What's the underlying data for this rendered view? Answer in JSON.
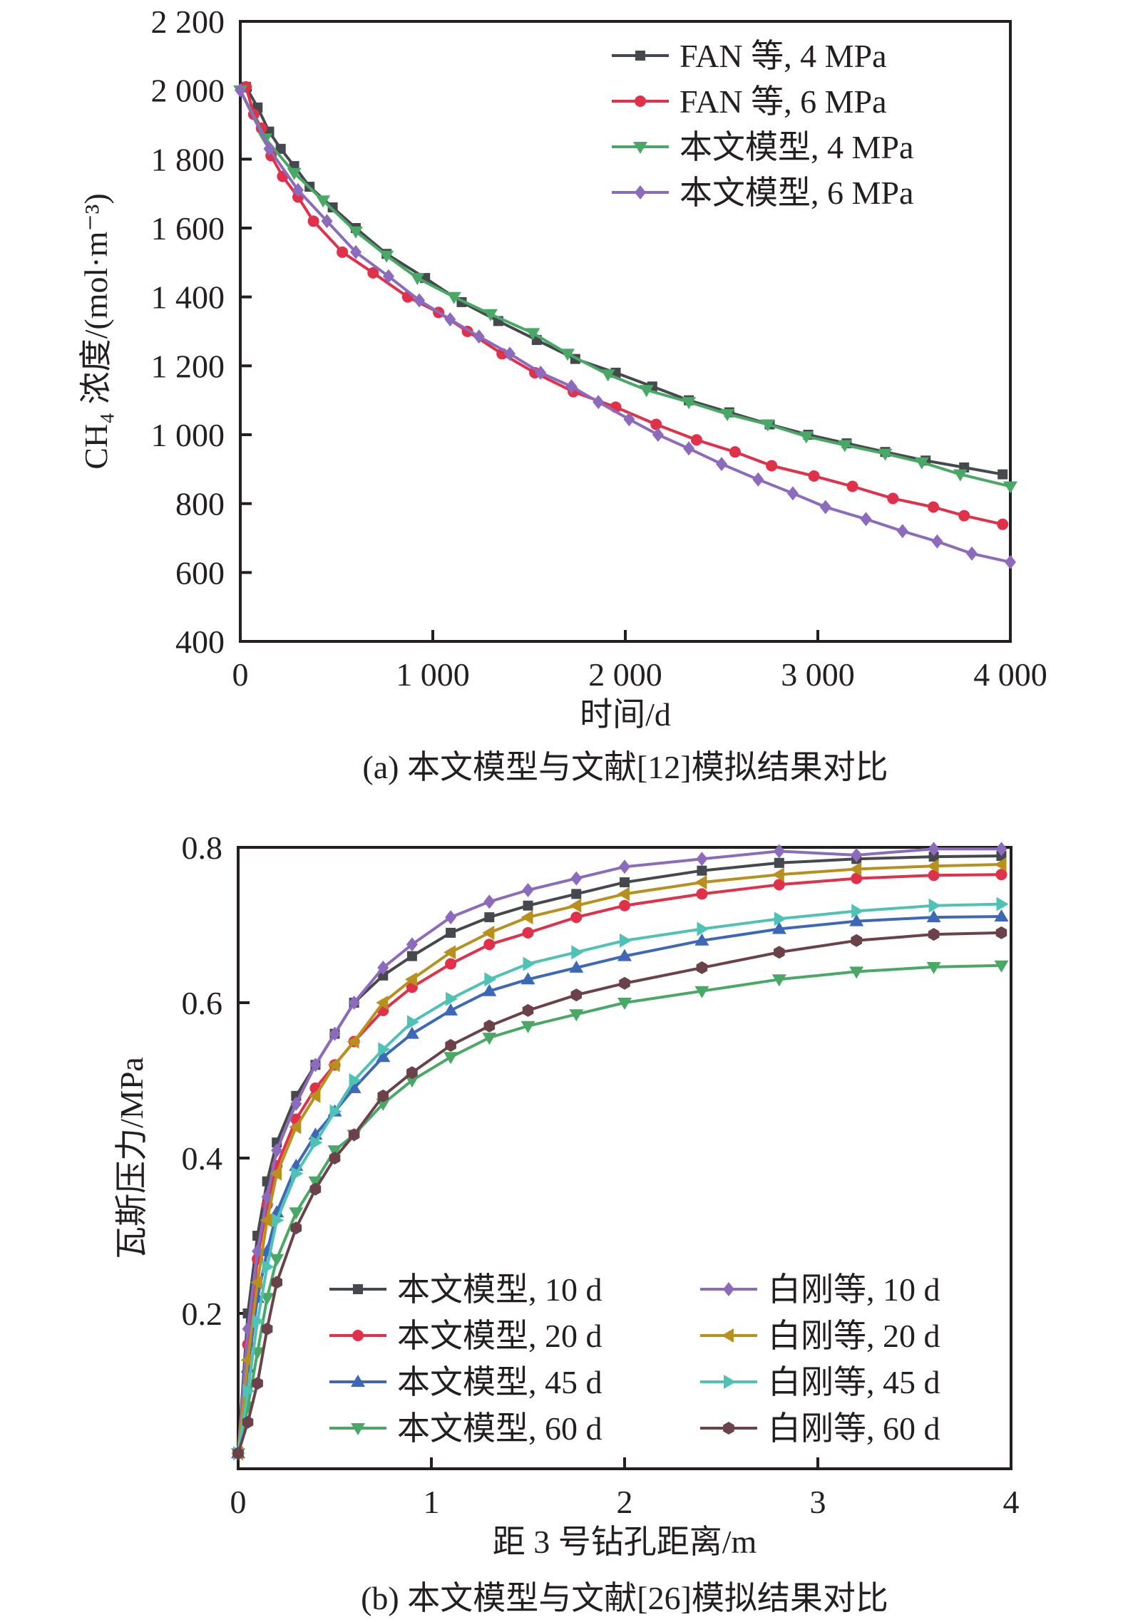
{
  "chart_data": [
    {
      "id": "a",
      "type": "line",
      "title": "",
      "caption": "(a) 本文模型与文献[12]模拟结果对比",
      "xlabel": "时间/d",
      "ylabel": "CH₄ 浓度/(mol·m⁻³)",
      "xlim": [
        0,
        4000
      ],
      "ylim": [
        400,
        2200
      ],
      "xticks": [
        0,
        1000,
        2000,
        3000,
        4000
      ],
      "xtick_labels": [
        "0",
        "1 000",
        "2 000",
        "3 000",
        "4 000"
      ],
      "yticks": [
        400,
        600,
        800,
        1000,
        1200,
        1400,
        1600,
        1800,
        2000,
        2200
      ],
      "ytick_labels": [
        "400",
        "600",
        "800",
        "1 000",
        "1 200",
        "1 400",
        "1 600",
        "1 800",
        "2 000",
        "2 200"
      ],
      "grid": false,
      "legend_position": "top-right",
      "series": [
        {
          "name": "FAN 等, 4 MPa",
          "color": "#45494d",
          "marker": "square",
          "x": [
            30,
            90,
            150,
            210,
            280,
            360,
            480,
            600,
            760,
            960,
            1150,
            1340,
            1540,
            1740,
            1950,
            2140,
            2330,
            2540,
            2750,
            2950,
            3150,
            3350,
            3560,
            3760,
            3960
          ],
          "y": [
            2010,
            1950,
            1880,
            1830,
            1780,
            1720,
            1660,
            1600,
            1525,
            1455,
            1385,
            1330,
            1275,
            1220,
            1180,
            1140,
            1100,
            1065,
            1030,
            1000,
            975,
            950,
            925,
            905,
            885
          ]
        },
        {
          "name": "FAN 等, 6 MPa",
          "color": "#e0304a",
          "marker": "circle",
          "x": [
            30,
            70,
            110,
            160,
            220,
            300,
            380,
            530,
            690,
            870,
            1030,
            1180,
            1360,
            1530,
            1730,
            1950,
            2160,
            2370,
            2570,
            2760,
            2980,
            3180,
            3390,
            3600,
            3760,
            3960
          ],
          "y": [
            2010,
            1930,
            1890,
            1810,
            1750,
            1690,
            1620,
            1530,
            1470,
            1400,
            1355,
            1300,
            1235,
            1180,
            1125,
            1080,
            1030,
            985,
            950,
            910,
            880,
            850,
            815,
            790,
            765,
            740
          ]
        },
        {
          "name": "本文模型, 4 MPa",
          "color": "#4aa866",
          "marker": "triangle-down",
          "x": [
            0,
            130,
            280,
            430,
            600,
            760,
            920,
            1110,
            1300,
            1520,
            1700,
            1910,
            2110,
            2330,
            2530,
            2740,
            2940,
            3140,
            3350,
            3540,
            3740,
            4000
          ],
          "y": [
            2000,
            1860,
            1760,
            1680,
            1590,
            1520,
            1455,
            1400,
            1350,
            1295,
            1235,
            1175,
            1130,
            1095,
            1060,
            1030,
            995,
            970,
            945,
            920,
            885,
            850
          ]
        },
        {
          "name": "本文模型, 6 MPa",
          "color": "#8c6bbd",
          "marker": "diamond",
          "x": [
            0,
            150,
            300,
            450,
            600,
            770,
            930,
            1090,
            1240,
            1400,
            1560,
            1720,
            1860,
            2020,
            2170,
            2330,
            2500,
            2690,
            2870,
            3040,
            3250,
            3440,
            3620,
            3800,
            4000
          ],
          "y": [
            2000,
            1830,
            1710,
            1620,
            1530,
            1460,
            1390,
            1335,
            1285,
            1235,
            1180,
            1140,
            1095,
            1045,
            1000,
            960,
            915,
            870,
            830,
            790,
            755,
            720,
            690,
            655,
            630
          ]
        }
      ]
    },
    {
      "id": "b",
      "type": "line",
      "title": "",
      "caption": "(b) 本文模型与文献[26]模拟结果对比",
      "xlabel": "距 3 号钻孔距离/m",
      "ylabel": "瓦斯压力/MPa",
      "xlim": [
        0,
        4
      ],
      "ylim": [
        0,
        0.8
      ],
      "xticks": [
        0,
        1,
        2,
        3,
        4
      ],
      "xtick_labels": [
        "0",
        "1",
        "2",
        "3",
        "4"
      ],
      "yticks": [
        0.2,
        0.4,
        0.6,
        0.8
      ],
      "ytick_labels": [
        "0.2",
        "0.4",
        "0.6",
        "0.8"
      ],
      "grid": false,
      "legend_position": "bottom-right",
      "series": [
        {
          "name": "本文模型, 10 d",
          "color": "#45494d",
          "marker": "square",
          "x": [
            0,
            0.05,
            0.1,
            0.15,
            0.2,
            0.3,
            0.4,
            0.5,
            0.6,
            0.75,
            0.9,
            1.1,
            1.3,
            1.5,
            1.75,
            2.0,
            2.4,
            2.8,
            3.2,
            3.6,
            3.95
          ],
          "y": [
            0.02,
            0.2,
            0.3,
            0.37,
            0.42,
            0.48,
            0.52,
            0.56,
            0.6,
            0.635,
            0.66,
            0.69,
            0.71,
            0.725,
            0.74,
            0.755,
            0.77,
            0.78,
            0.785,
            0.788,
            0.789
          ]
        },
        {
          "name": "本文模型, 20 d",
          "color": "#e0304a",
          "marker": "circle",
          "x": [
            0,
            0.05,
            0.1,
            0.15,
            0.2,
            0.3,
            0.4,
            0.5,
            0.6,
            0.75,
            0.9,
            1.1,
            1.3,
            1.5,
            1.75,
            2.0,
            2.4,
            2.8,
            3.2,
            3.6,
            3.95
          ],
          "y": [
            0.02,
            0.16,
            0.27,
            0.34,
            0.39,
            0.45,
            0.49,
            0.52,
            0.55,
            0.59,
            0.62,
            0.65,
            0.675,
            0.69,
            0.71,
            0.725,
            0.74,
            0.752,
            0.76,
            0.764,
            0.765
          ]
        },
        {
          "name": "本文模型, 45 d",
          "color": "#3d68b8",
          "marker": "triangle-up",
          "x": [
            0,
            0.05,
            0.1,
            0.15,
            0.2,
            0.3,
            0.4,
            0.5,
            0.6,
            0.75,
            0.9,
            1.1,
            1.3,
            1.5,
            1.75,
            2.0,
            2.4,
            2.8,
            3.2,
            3.6,
            3.95
          ],
          "y": [
            0.02,
            0.13,
            0.22,
            0.28,
            0.33,
            0.39,
            0.43,
            0.46,
            0.49,
            0.53,
            0.56,
            0.59,
            0.615,
            0.63,
            0.645,
            0.66,
            0.68,
            0.695,
            0.705,
            0.71,
            0.711
          ]
        },
        {
          "name": "本文模型, 60 d",
          "color": "#4aa866",
          "marker": "triangle-down",
          "x": [
            0,
            0.05,
            0.1,
            0.15,
            0.2,
            0.3,
            0.4,
            0.5,
            0.6,
            0.75,
            0.9,
            1.1,
            1.3,
            1.5,
            1.75,
            2.0,
            2.4,
            2.8,
            3.2,
            3.6,
            3.95
          ],
          "y": [
            0.02,
            0.08,
            0.15,
            0.22,
            0.27,
            0.33,
            0.37,
            0.41,
            0.43,
            0.47,
            0.5,
            0.53,
            0.555,
            0.57,
            0.585,
            0.6,
            0.615,
            0.63,
            0.64,
            0.646,
            0.648
          ]
        },
        {
          "name": "白刚等, 10 d",
          "color": "#8c6bbd",
          "marker": "diamond",
          "x": [
            0,
            0.05,
            0.1,
            0.15,
            0.2,
            0.3,
            0.4,
            0.5,
            0.6,
            0.75,
            0.9,
            1.1,
            1.3,
            1.5,
            1.75,
            2.0,
            2.4,
            2.8,
            3.2,
            3.6,
            3.95
          ],
          "y": [
            0.02,
            0.18,
            0.28,
            0.35,
            0.41,
            0.47,
            0.52,
            0.56,
            0.6,
            0.645,
            0.675,
            0.71,
            0.73,
            0.745,
            0.76,
            0.775,
            0.785,
            0.795,
            0.79,
            0.798,
            0.798
          ]
        },
        {
          "name": "白刚等, 20 d",
          "color": "#b8901e",
          "marker": "triangle-left",
          "x": [
            0,
            0.05,
            0.1,
            0.15,
            0.2,
            0.3,
            0.4,
            0.5,
            0.6,
            0.75,
            0.9,
            1.1,
            1.3,
            1.5,
            1.75,
            2.0,
            2.4,
            2.8,
            3.2,
            3.6,
            3.95
          ],
          "y": [
            0.02,
            0.14,
            0.24,
            0.32,
            0.38,
            0.44,
            0.48,
            0.52,
            0.55,
            0.6,
            0.63,
            0.665,
            0.69,
            0.71,
            0.725,
            0.74,
            0.755,
            0.765,
            0.772,
            0.776,
            0.778
          ]
        },
        {
          "name": "白刚等, 45 d",
          "color": "#4dc2b5",
          "marker": "triangle-right",
          "x": [
            0,
            0.05,
            0.1,
            0.15,
            0.2,
            0.3,
            0.4,
            0.5,
            0.6,
            0.75,
            0.9,
            1.1,
            1.3,
            1.5,
            1.75,
            2.0,
            2.4,
            2.8,
            3.2,
            3.6,
            3.95
          ],
          "y": [
            0.02,
            0.1,
            0.19,
            0.26,
            0.32,
            0.38,
            0.42,
            0.46,
            0.5,
            0.54,
            0.575,
            0.605,
            0.63,
            0.65,
            0.665,
            0.68,
            0.695,
            0.708,
            0.718,
            0.725,
            0.727
          ]
        },
        {
          "name": "白刚等, 60 d",
          "color": "#6b424a",
          "marker": "hexagon",
          "x": [
            0,
            0.05,
            0.1,
            0.15,
            0.2,
            0.3,
            0.4,
            0.5,
            0.6,
            0.75,
            0.9,
            1.1,
            1.3,
            1.5,
            1.75,
            2.0,
            2.4,
            2.8,
            3.2,
            3.6,
            3.95
          ],
          "y": [
            0.02,
            0.06,
            0.11,
            0.18,
            0.24,
            0.31,
            0.36,
            0.4,
            0.43,
            0.48,
            0.51,
            0.545,
            0.57,
            0.59,
            0.61,
            0.625,
            0.645,
            0.665,
            0.68,
            0.688,
            0.69
          ]
        }
      ]
    }
  ]
}
